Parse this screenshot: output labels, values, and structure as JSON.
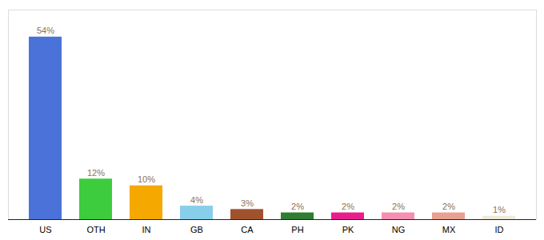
{
  "chart_data": {
    "type": "bar",
    "categories": [
      "US",
      "OTH",
      "IN",
      "GB",
      "CA",
      "PH",
      "PK",
      "NG",
      "MX",
      "ID"
    ],
    "values": [
      54,
      12,
      10,
      4,
      3,
      2,
      2,
      2,
      2,
      1
    ],
    "value_labels": [
      "54%",
      "12%",
      "10%",
      "4%",
      "3%",
      "2%",
      "2%",
      "2%",
      "2%",
      "1%"
    ],
    "colors": [
      "#4a72d8",
      "#3dcc3d",
      "#f5a800",
      "#87ceeb",
      "#a0522d",
      "#2e7d32",
      "#e91e8c",
      "#f48fb1",
      "#e8a090",
      "#f0ead8"
    ],
    "ylim": [
      0,
      62
    ],
    "data_labels": true,
    "tick_labels": "x",
    "grid": false
  }
}
